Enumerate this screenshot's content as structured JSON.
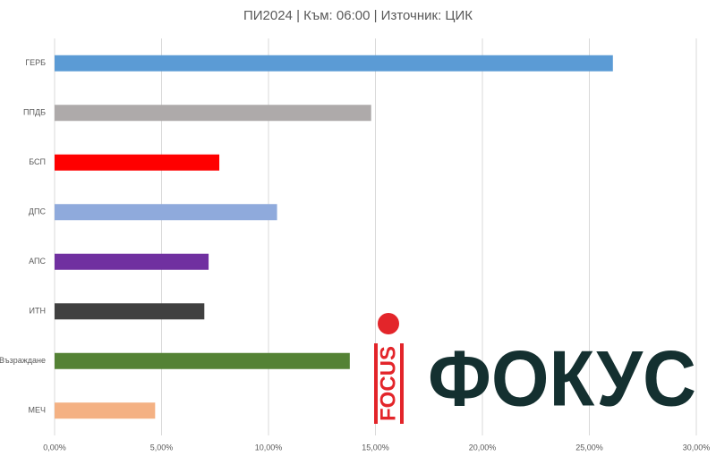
{
  "chart_data": {
    "type": "barh",
    "title": "ПИ2024  | Към: 06:00  | Източник: ЦИК",
    "categories": [
      "ГЕРБ",
      "ППДБ",
      "БСП",
      "ДПС",
      "АПС",
      "ИТН",
      "Възраждане",
      "МЕЧ"
    ],
    "values": [
      26.1,
      14.8,
      7.7,
      10.4,
      7.2,
      7.0,
      13.8,
      4.7
    ],
    "colors": [
      "#5b9bd5",
      "#aeaaaa",
      "#ff0000",
      "#8faadc",
      "#7030a0",
      "#404040",
      "#548235",
      "#f4b183"
    ],
    "xlim": [
      0,
      30
    ],
    "xticks": [
      {
        "value": 0,
        "label": "0,00%"
      },
      {
        "value": 5,
        "label": "5,00%"
      },
      {
        "value": 10,
        "label": "10,00%"
      },
      {
        "value": 15,
        "label": "15,00%"
      },
      {
        "value": 20,
        "label": "20,00%"
      },
      {
        "value": 25,
        "label": "25,00%"
      },
      {
        "value": 30,
        "label": "30,00%"
      }
    ],
    "grid": true
  },
  "watermark": {
    "small": "FOCUS",
    "large": "ФОКУС"
  }
}
